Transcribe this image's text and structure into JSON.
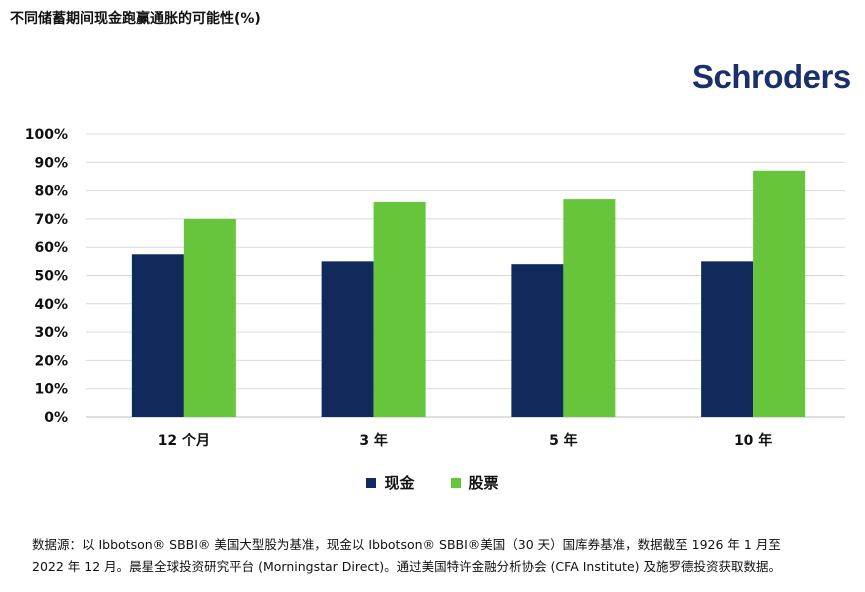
{
  "title": "不同储蓄期间现金跑赢通胀的可能性(%)",
  "logo": {
    "text": "Schroders",
    "color": "#1a2f6b"
  },
  "chart_data": {
    "type": "bar",
    "categories": [
      "12 个月",
      "3 年",
      "5 年",
      "10 年"
    ],
    "series": [
      {
        "name": "现金",
        "values": [
          57.5,
          55,
          54,
          55
        ],
        "color": "#102a5c"
      },
      {
        "name": "股票",
        "values": [
          70,
          76,
          77,
          87
        ],
        "color": "#66c53a"
      }
    ],
    "ylim": [
      0,
      100
    ],
    "yticks": [
      "0%",
      "10%",
      "20%",
      "30%",
      "40%",
      "50%",
      "60%",
      "70%",
      "80%",
      "90%",
      "100%"
    ],
    "xlabel": "",
    "ylabel": "",
    "grid": true,
    "legend_position": "bottom"
  },
  "source": {
    "line1": "数据源：以 Ibbotson® SBBI® 美国大型股为基准，现金以 Ibbotson® SBBI®美国（30 天）国库券基准，数据截至 1926 年 1 月至",
    "line2": "2022 年 12 月。晨星全球投资研究平台 (Morningstar Direct)。通过美国特许金融分析协会 (CFA Institute) 及施罗德投资获取数据。"
  }
}
